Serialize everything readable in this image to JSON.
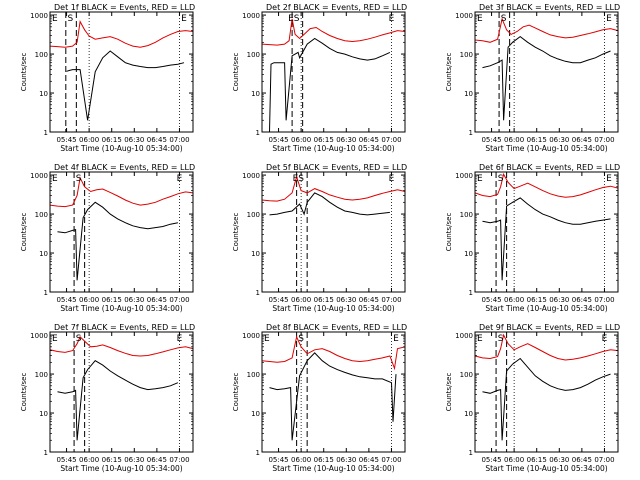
{
  "chart_data": {
    "type": "line",
    "panel_titles": [
      "Det 1f BLACK = Events, RED = LLD",
      "Det 2f BLACK = Events, RED = LLD",
      "Det 3f BLACK = Events, RED = LLD",
      "Det 4f BLACK = Events, RED = LLD",
      "Det 5f BLACK = Events, RED = LLD",
      "Det 6f BLACK = Events, RED = LLD",
      "Det 7f BLACK = Events, RED = LLD",
      "Det 8f BLACK = Events, RED = LLD",
      "Det 9f BLACK = Events, RED = LLD"
    ],
    "xlabel": "Start Time (10-Aug-10 05:34:00)",
    "ylabel": "Counts/sec",
    "x_ticks": [
      "05:45",
      "06:00",
      "06:15",
      "06:30",
      "06:45",
      "07:00"
    ],
    "y_ticks": [
      "1",
      "10",
      "100",
      "1000"
    ],
    "y_scale": "log",
    "ylim": [
      1,
      1200
    ],
    "x_minutes_range": [
      0,
      95
    ],
    "grid": false,
    "legend": "in title",
    "series_colors": {
      "events": "#000000",
      "lld": "#e00000"
    },
    "markers": [
      "E",
      "S",
      "E"
    ],
    "panels": [
      {
        "markers_x": [
          0,
          13.5,
          89
        ],
        "events": {
          "x": [
            11,
            13,
            15,
            20,
            25,
            30,
            35,
            40,
            45,
            50,
            55,
            60,
            65,
            70,
            75,
            80,
            85,
            89
          ],
          "y": [
            36,
            38,
            40,
            40,
            2,
            35,
            80,
            120,
            85,
            60,
            52,
            48,
            45,
            45,
            48,
            52,
            55,
            60
          ]
        },
        "lld": {
          "x": [
            0,
            5,
            10,
            15,
            18,
            20,
            23,
            26,
            30,
            35,
            40,
            45,
            50,
            55,
            60,
            65,
            70,
            75,
            80,
            85,
            90,
            95
          ],
          "y": [
            160,
            155,
            150,
            160,
            200,
            680,
            420,
            290,
            240,
            260,
            280,
            240,
            190,
            160,
            150,
            165,
            200,
            260,
            320,
            380,
            400,
            380
          ]
        }
      },
      {
        "markers_x": [
          16,
          23,
          86
        ],
        "events": {
          "x": [
            5,
            6,
            8,
            15,
            16,
            20,
            24,
            25,
            30,
            35,
            40,
            45,
            50,
            55,
            60,
            65,
            70,
            75,
            80,
            85
          ],
          "y": [
            1,
            55,
            60,
            60,
            2,
            90,
            110,
            80,
            180,
            250,
            190,
            140,
            110,
            100,
            85,
            75,
            70,
            75,
            90,
            110
          ]
        },
        "lld": {
          "x": [
            0,
            5,
            10,
            15,
            18,
            20,
            22,
            25,
            28,
            32,
            36,
            40,
            45,
            50,
            55,
            60,
            65,
            70,
            75,
            80,
            85,
            90,
            95
          ],
          "y": [
            180,
            175,
            170,
            180,
            220,
            800,
            320,
            250,
            320,
            450,
            480,
            380,
            300,
            250,
            220,
            210,
            220,
            240,
            270,
            310,
            350,
            400,
            380
          ]
        }
      },
      {
        "markers_x": [
          0,
          19,
          89
        ],
        "events": {
          "x": [
            5,
            10,
            15,
            18,
            19,
            22,
            25,
            30,
            35,
            40,
            45,
            50,
            55,
            60,
            65,
            70,
            75,
            80,
            85,
            90
          ],
          "y": [
            45,
            50,
            60,
            70,
            2,
            150,
            200,
            280,
            200,
            150,
            120,
            90,
            75,
            65,
            60,
            60,
            70,
            80,
            100,
            120
          ]
        },
        "lld": {
          "x": [
            0,
            5,
            10,
            15,
            18,
            21,
            24,
            28,
            32,
            36,
            40,
            45,
            50,
            55,
            60,
            65,
            70,
            75,
            80,
            85,
            90,
            95
          ],
          "y": [
            230,
            220,
            200,
            240,
            800,
            420,
            320,
            380,
            500,
            550,
            470,
            380,
            310,
            280,
            260,
            270,
            300,
            330,
            370,
            420,
            450,
            400
          ]
        }
      },
      {
        "markers_x": [
          0,
          19,
          86
        ],
        "events": {
          "x": [
            5,
            10,
            15,
            17,
            18,
            22,
            25,
            30,
            35,
            40,
            45,
            50,
            55,
            60,
            65,
            70,
            75,
            80,
            85
          ],
          "y": [
            35,
            33,
            38,
            40,
            2,
            80,
            130,
            200,
            150,
            100,
            75,
            60,
            50,
            45,
            42,
            45,
            48,
            55,
            60
          ]
        },
        "lld": {
          "x": [
            0,
            5,
            10,
            15,
            18,
            20,
            23,
            27,
            31,
            35,
            40,
            45,
            50,
            55,
            60,
            65,
            70,
            75,
            80,
            85,
            90,
            95
          ],
          "y": [
            170,
            160,
            155,
            170,
            300,
            850,
            500,
            380,
            420,
            440,
            360,
            290,
            230,
            190,
            170,
            180,
            200,
            240,
            280,
            330,
            370,
            350
          ]
        }
      },
      {
        "markers_x": [
          19,
          26,
          86
        ],
        "events": {
          "x": [
            5,
            10,
            15,
            20,
            25,
            28,
            30,
            35,
            40,
            45,
            50,
            55,
            60,
            65,
            70,
            75,
            80,
            85
          ],
          "y": [
            95,
            100,
            110,
            120,
            180,
            100,
            200,
            350,
            280,
            200,
            150,
            120,
            110,
            100,
            95,
            100,
            105,
            110
          ]
        },
        "lld": {
          "x": [
            0,
            5,
            10,
            15,
            20,
            23,
            26,
            30,
            35,
            40,
            45,
            50,
            55,
            60,
            65,
            70,
            75,
            80,
            85,
            90,
            95
          ],
          "y": [
            230,
            220,
            215,
            240,
            350,
            900,
            400,
            350,
            450,
            380,
            310,
            270,
            240,
            230,
            240,
            260,
            300,
            340,
            380,
            420,
            380
          ]
        }
      },
      {
        "markers_x": [
          0,
          17,
          89
        ],
        "events": {
          "x": [
            5,
            10,
            15,
            17,
            18,
            21,
            25,
            30,
            35,
            40,
            45,
            50,
            55,
            60,
            65,
            70,
            75,
            80,
            85,
            90
          ],
          "y": [
            65,
            60,
            65,
            70,
            2,
            160,
            200,
            260,
            180,
            130,
            100,
            85,
            70,
            60,
            55,
            55,
            60,
            65,
            70,
            75
          ]
        },
        "lld": {
          "x": [
            0,
            5,
            10,
            15,
            17,
            19,
            22,
            26,
            30,
            35,
            40,
            45,
            50,
            55,
            60,
            65,
            70,
            75,
            80,
            85,
            90,
            95
          ],
          "y": [
            350,
            300,
            280,
            320,
            500,
            1050,
            650,
            450,
            520,
            620,
            500,
            400,
            330,
            290,
            270,
            280,
            310,
            360,
            420,
            480,
            520,
            460
          ]
        }
      },
      {
        "markers_x": [
          0,
          19,
          86
        ],
        "events": {
          "x": [
            5,
            10,
            15,
            17,
            18,
            22,
            25,
            30,
            35,
            40,
            45,
            50,
            55,
            60,
            65,
            70,
            75,
            80,
            85
          ],
          "y": [
            35,
            32,
            35,
            38,
            2,
            80,
            130,
            220,
            170,
            120,
            90,
            70,
            55,
            45,
            40,
            42,
            45,
            50,
            60
          ]
        },
        "lld": {
          "x": [
            0,
            5,
            10,
            15,
            18,
            20,
            23,
            27,
            31,
            35,
            40,
            45,
            50,
            55,
            60,
            65,
            70,
            75,
            80,
            85,
            90,
            95
          ],
          "y": [
            420,
            380,
            360,
            400,
            600,
            900,
            700,
            500,
            520,
            560,
            480,
            400,
            340,
            300,
            290,
            300,
            330,
            370,
            420,
            470,
            500,
            450
          ]
        }
      },
      {
        "markers_x": [
          0,
          26,
          89
        ],
        "events": {
          "x": [
            5,
            10,
            15,
            19,
            20,
            25,
            30,
            35,
            40,
            45,
            50,
            55,
            60,
            65,
            70,
            75,
            80,
            86,
            87,
            89
          ],
          "y": [
            45,
            40,
            42,
            45,
            2,
            90,
            220,
            350,
            220,
            160,
            130,
            110,
            95,
            85,
            80,
            75,
            75,
            60,
            6,
            100
          ]
        },
        "lld": {
          "x": [
            0,
            5,
            10,
            15,
            20,
            23,
            26,
            30,
            35,
            40,
            45,
            50,
            55,
            60,
            65,
            70,
            75,
            80,
            85,
            88,
            90,
            95
          ],
          "y": [
            220,
            210,
            200,
            210,
            260,
            900,
            500,
            330,
            420,
            450,
            380,
            300,
            250,
            220,
            210,
            220,
            240,
            260,
            290,
            140,
            450,
            500
          ]
        }
      },
      {
        "markers_x": [
          0,
          17,
          86
        ],
        "events": {
          "x": [
            5,
            10,
            15,
            17,
            18,
            21,
            25,
            30,
            35,
            40,
            45,
            50,
            55,
            60,
            65,
            70,
            75,
            80,
            85,
            90
          ],
          "y": [
            35,
            32,
            38,
            40,
            2,
            120,
            180,
            250,
            150,
            90,
            65,
            50,
            42,
            38,
            40,
            45,
            55,
            70,
            85,
            100
          ]
        },
        "lld": {
          "x": [
            0,
            5,
            10,
            15,
            17,
            19,
            22,
            26,
            30,
            35,
            40,
            45,
            50,
            55,
            60,
            65,
            70,
            75,
            80,
            85,
            90,
            95
          ],
          "y": [
            290,
            260,
            250,
            280,
            450,
            1000,
            600,
            420,
            500,
            600,
            480,
            380,
            300,
            250,
            230,
            240,
            260,
            290,
            330,
            380,
            420,
            400
          ]
        }
      }
    ]
  }
}
